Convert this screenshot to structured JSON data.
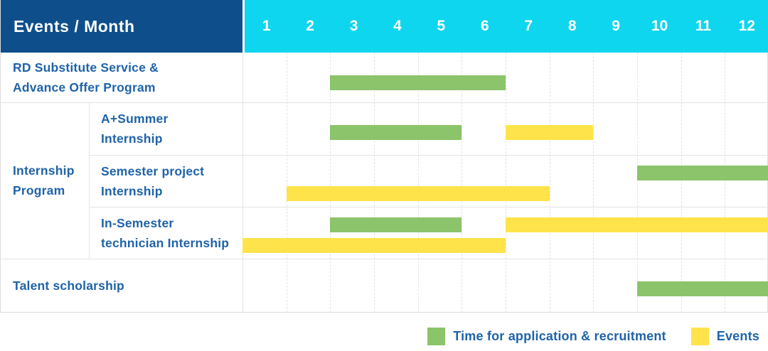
{
  "header": {
    "title": "Events / Month",
    "months": [
      "1",
      "2",
      "3",
      "4",
      "5",
      "6",
      "7",
      "8",
      "9",
      "10",
      "11",
      "12"
    ]
  },
  "labels": {
    "group_lines": [
      "Internship",
      "Program"
    ]
  },
  "legend": [
    {
      "label": "Time for application & recruitment",
      "color": "#8bc46a",
      "type": "application"
    },
    {
      "label": "Events",
      "color": "#ffe34a",
      "type": "event"
    }
  ],
  "colors": {
    "header_bg": "#0e4f8b",
    "month_bg": "#0dd6ee",
    "text_blue": "#1f63a8",
    "application_green": "#8bc46a",
    "event_yellow": "#ffe34a",
    "grid_line": "#e3e3e6",
    "border": "#dcdcdf",
    "white": "#ffffff"
  },
  "chart_data": {
    "type": "gantt",
    "title": "Events / Month",
    "x_unit": "month",
    "x_range": [
      1,
      12
    ],
    "legend_position": "bottom-right",
    "grid": true,
    "rows": [
      {
        "group": null,
        "label": "RD Substitute Service & Advance Offer Program",
        "label_lines": [
          "RD Substitute Service &",
          "Advance Offer Program"
        ],
        "bars": [
          {
            "type": "application",
            "start": 3,
            "end": 6,
            "line": "single"
          }
        ]
      },
      {
        "group": "Internship Program",
        "label": "A+Summer Internship",
        "label_lines": [
          "A+Summer",
          "Internship"
        ],
        "bars": [
          {
            "type": "application",
            "start": 3,
            "end": 5,
            "line": "single"
          },
          {
            "type": "event",
            "start": 7,
            "end": 8,
            "line": "single"
          }
        ]
      },
      {
        "group": "Internship Program",
        "label": "Semester project Internship",
        "label_lines": [
          "Semester project",
          "Internship"
        ],
        "bars": [
          {
            "type": "application",
            "start": 10,
            "end": 12,
            "line": "top"
          },
          {
            "type": "event",
            "start": 2,
            "end": 7,
            "line": "bottom"
          }
        ]
      },
      {
        "group": "Internship Program",
        "label": "In-Semester technician Internship",
        "label_lines": [
          "In-Semester",
          "technician Internship"
        ],
        "bars": [
          {
            "type": "application",
            "start": 3,
            "end": 5,
            "line": "top"
          },
          {
            "type": "event",
            "start": 7,
            "end": 12,
            "line": "top"
          },
          {
            "type": "event",
            "start": 1,
            "end": 6,
            "line": "bottom"
          }
        ]
      },
      {
        "group": null,
        "label": "Talent scholarship",
        "label_lines": [
          "Talent scholarship"
        ],
        "bars": [
          {
            "type": "application",
            "start": 10,
            "end": 12,
            "line": "single"
          }
        ]
      }
    ]
  }
}
